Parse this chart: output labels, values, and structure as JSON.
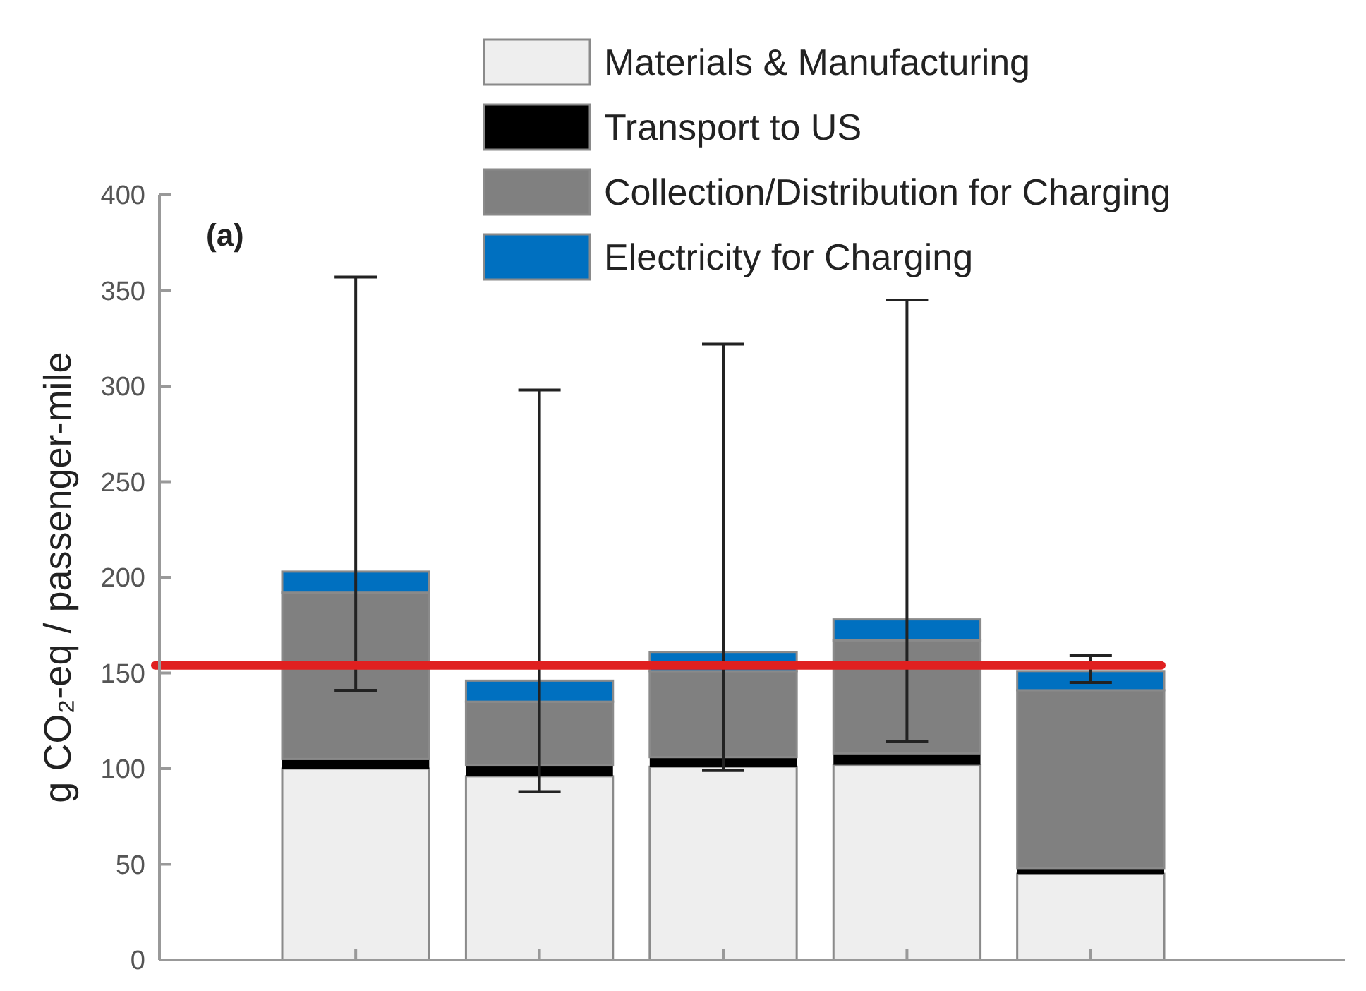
{
  "chart_data": {
    "type": "bar",
    "stacked": true,
    "ylabel": "g CO₂-eq / passenger-mile",
    "annotations": [
      "(a)"
    ],
    "categories": [
      null,
      null,
      null,
      null,
      null
    ],
    "series": [
      {
        "name": "Materials & Manufacturing",
        "color": "#eeeeee",
        "values": [
          100,
          96,
          101,
          102,
          45
        ]
      },
      {
        "name": "Transport to US",
        "color": "#000000",
        "values": [
          5,
          6,
          5,
          6,
          3
        ]
      },
      {
        "name": "Collection/Distribution for Charging",
        "color": "#808080",
        "values": [
          87,
          33,
          45,
          59,
          93
        ]
      },
      {
        "name": "Electricity for Charging",
        "color": "#0070c0",
        "values": [
          11,
          11,
          10,
          11,
          10
        ],
        "errors": [
          [
            141,
            357
          ],
          [
            88,
            298
          ],
          [
            99,
            322
          ],
          [
            114,
            345
          ],
          [
            145,
            159
          ]
        ]
      }
    ],
    "ylim": [
      0,
      400
    ],
    "yticks": [
      0,
      50,
      100,
      150,
      200,
      250,
      300,
      350,
      400
    ],
    "ref_lines": [
      {
        "axis": "y",
        "value": 154,
        "color": "#e02020"
      }
    ],
    "legend": "top right",
    "grid": false
  }
}
